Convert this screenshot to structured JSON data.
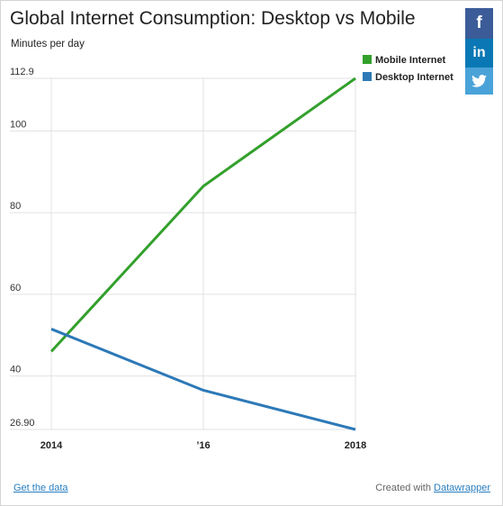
{
  "chart_data": {
    "type": "line",
    "title": "Global Internet Consumption: Desktop vs Mobile",
    "ylabel": "Minutes per day",
    "xlabel": "",
    "x": [
      2014,
      2016,
      2018
    ],
    "x_tick_labels": [
      "2014",
      "’16",
      "2018"
    ],
    "y_ticks": [
      26.9,
      40,
      60,
      80,
      100,
      112.9
    ],
    "y_tick_labels": [
      "26.90",
      "40",
      "60",
      "80",
      "100",
      "112.9"
    ],
    "ylim": [
      26.9,
      112.9
    ],
    "grid": true,
    "legend_position": "top-right",
    "series": [
      {
        "name": "Mobile Internet",
        "color": "#33a02c",
        "values": [
          46,
          86.5,
          112.9
        ]
      },
      {
        "name": "Desktop Internet",
        "color": "#2d79b7",
        "values": [
          51.5,
          36.5,
          26.9
        ]
      }
    ]
  },
  "social": {
    "facebook": "f",
    "linkedin": "in",
    "twitter": "twitter-bird-icon"
  },
  "footer": {
    "get_data": "Get the data",
    "created_with": "Created with",
    "datawrapper": "Datawrapper"
  }
}
